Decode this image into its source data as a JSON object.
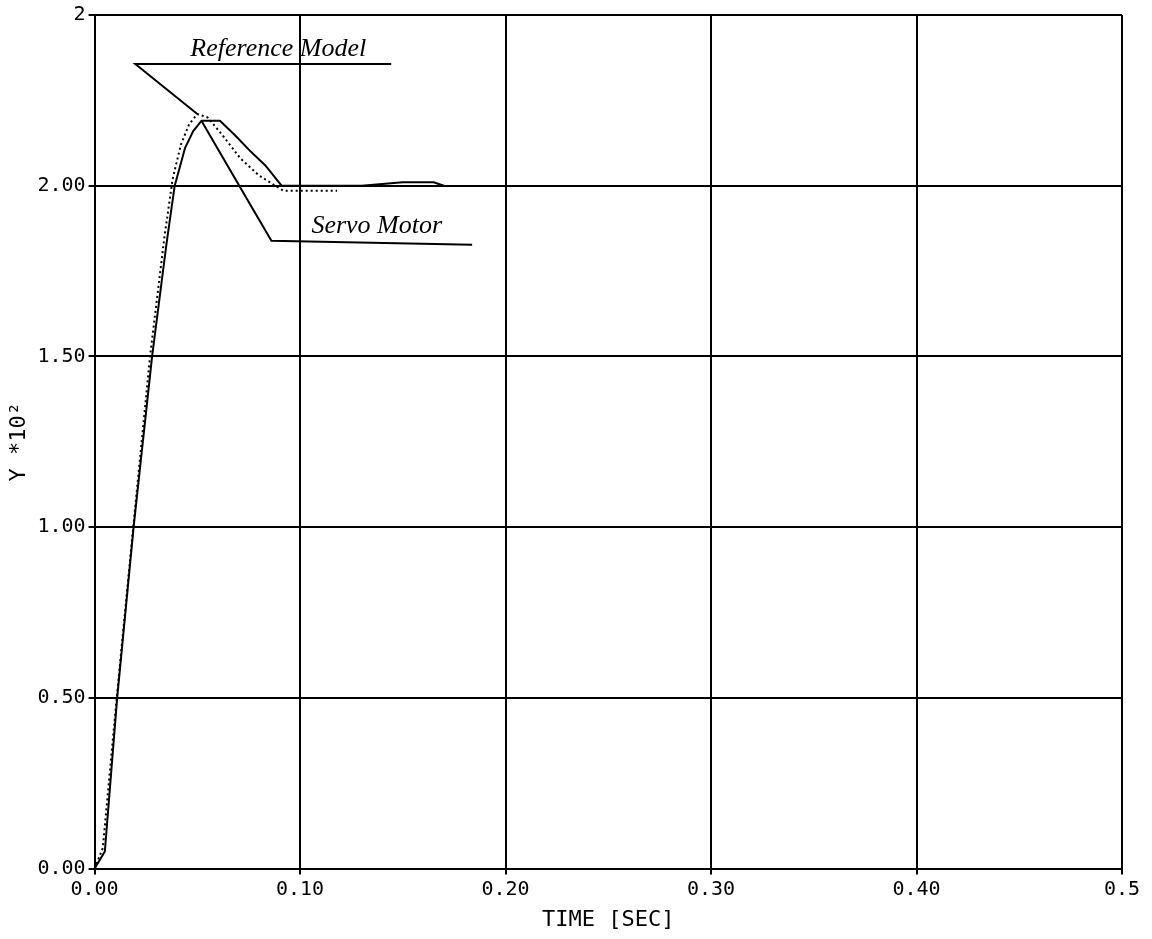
{
  "chart_data": {
    "type": "line",
    "xlabel": "TIME [SEC]",
    "ylabel": "Y *10²",
    "xlim": [
      0,
      0.5
    ],
    "xticks": [
      {
        "value": 0,
        "label": "0.00"
      },
      {
        "value": 0.1,
        "label": "0.10"
      },
      {
        "value": 0.2,
        "label": "0.20"
      },
      {
        "value": 0.3,
        "label": "0.30"
      },
      {
        "value": 0.4,
        "label": "0.40"
      },
      {
        "value": 0.5,
        "label": "0.5"
      }
    ],
    "ylim": [
      0,
      2.5
    ],
    "yticks": [
      {
        "value": 0,
        "label": "0.00"
      },
      {
        "value": 0.5,
        "label": "0.50"
      },
      {
        "value": 1,
        "label": "1.00"
      },
      {
        "value": 1.5,
        "label": "1.50"
      },
      {
        "value": 2,
        "label": "2.00"
      },
      {
        "value": 2.5,
        "label": "2"
      }
    ],
    "grid": true,
    "legend": false,
    "marker": "none",
    "series": [
      {
        "color": "#000000",
        "line_style": "dotted",
        "x": [
          0,
          0.004,
          0.01,
          0.018,
          0.027,
          0.034,
          0.038,
          0.042,
          0.046,
          0.05,
          0.055,
          0.062,
          0.071,
          0.08,
          0.088,
          0.092,
          0.1,
          0.11,
          0.118
        ],
        "values": [
          0,
          0.06,
          0.45,
          0.95,
          1.5,
          1.85,
          2.02,
          2.12,
          2.18,
          2.21,
          2.2,
          2.15,
          2.08,
          2.03,
          2.0,
          1.985,
          1.985,
          1.985,
          1.985
        ]
      },
      {
        "color": "#000000",
        "line_style": "solid",
        "x": [
          0,
          0.005,
          0.011,
          0.019,
          0.028,
          0.035,
          0.039,
          0.044,
          0.048,
          0.052,
          0.061,
          0.068,
          0.076,
          0.083,
          0.091,
          0.1,
          0.13,
          0.15,
          0.165,
          0.17
        ],
        "values": [
          0,
          0.05,
          0.5,
          1.0,
          1.5,
          1.83,
          2.0,
          2.11,
          2.16,
          2.19,
          2.19,
          2.15,
          2.1,
          2.06,
          2.0,
          2.0,
          2.0,
          2.01,
          2.01,
          2.0
        ]
      }
    ],
    "annotations": [
      {
        "text": "Reference Model",
        "x": 0.05,
        "y": 2.21
      },
      {
        "text": "Servo Motor",
        "x": 0.052,
        "y": 2.19
      }
    ]
  }
}
